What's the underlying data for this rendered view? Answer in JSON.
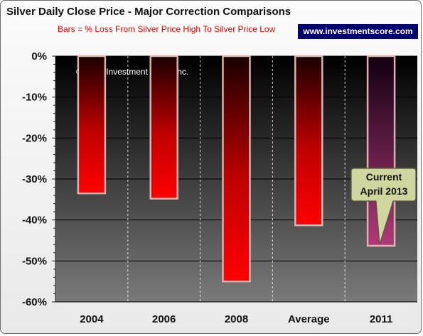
{
  "chart_data": {
    "type": "bar",
    "title": "Silver Daily Close Price - Major Correction Comparisons",
    "subtitle": "Bars =  % Loss From Silver Price High To Silver Price Low",
    "categories": [
      "2004",
      "2006",
      "2008",
      "Average",
      "2011"
    ],
    "values": [
      -33.5,
      -34.8,
      -55.0,
      -41.3,
      -46.3
    ],
    "ylim": [
      -60,
      0
    ],
    "yticks": [
      "0%",
      "-10%",
      "-20%",
      "-30%",
      "-40%",
      "-50%",
      "-60%"
    ],
    "xlabel": "",
    "ylabel": "",
    "grid": "horizontal",
    "colors": {
      "bar_top": "#1a0000",
      "bar_bottom": "#ff0000",
      "highlight_bar_top": "#120010",
      "highlight_bar_bottom": "#b03a78",
      "bar_outline": "#d9b4b4",
      "plot_background_top": "#000000",
      "plot_background_bottom": "#7a7a7a",
      "callout_fill": "#cfd6a0"
    }
  },
  "header": {
    "site_badge": "www.investmentscore.com"
  },
  "plot": {
    "copyright": "© 2013 Investment Score Inc."
  },
  "callout": {
    "line1": "Current",
    "line2": "April 2013"
  }
}
